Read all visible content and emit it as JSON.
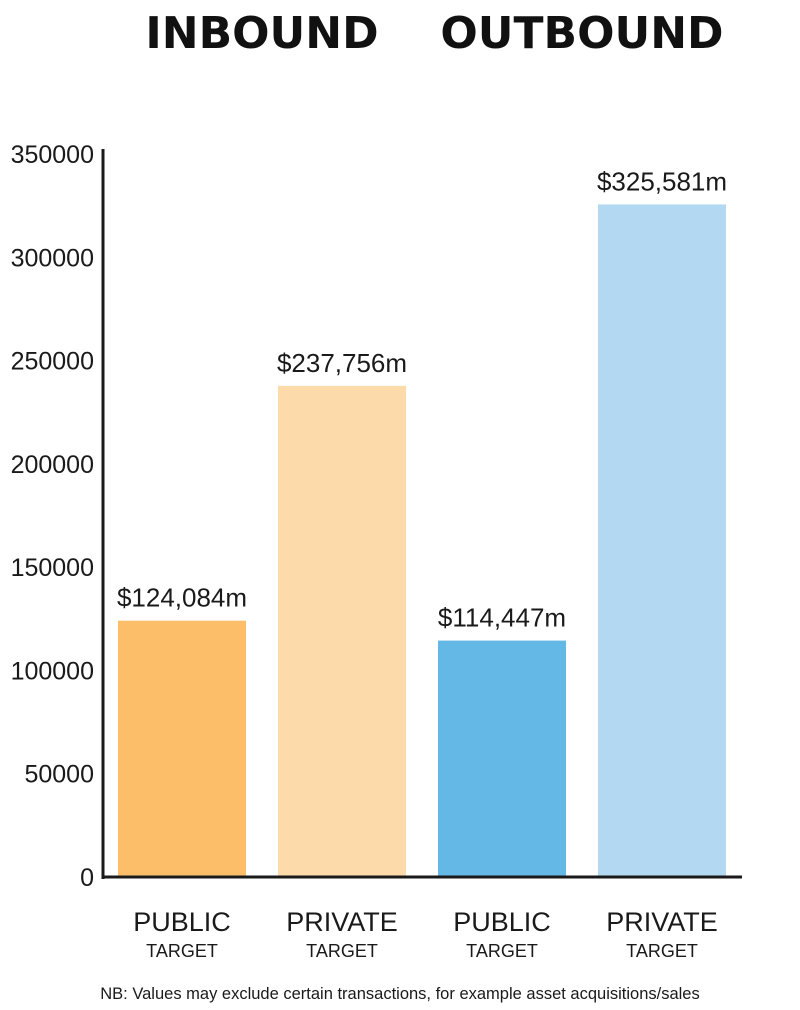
{
  "chart_data": {
    "type": "bar",
    "group_titles": [
      "INBOUND",
      "OUTBOUND"
    ],
    "categories": [
      {
        "main": "PUBLIC",
        "sub": "TARGET",
        "group": "INBOUND"
      },
      {
        "main": "PRIVATE",
        "sub": "TARGET",
        "group": "INBOUND"
      },
      {
        "main": "PUBLIC",
        "sub": "TARGET",
        "group": "OUTBOUND"
      },
      {
        "main": "PRIVATE",
        "sub": "TARGET",
        "group": "OUTBOUND"
      }
    ],
    "values": [
      124084,
      237756,
      114447,
      325581
    ],
    "data_labels": [
      "$124,084m",
      "$237,756m",
      "$114,447m",
      "$325,581m"
    ],
    "colors": [
      "#FDBE69",
      "#FDDAAA",
      "#63B8E5",
      "#B3D8F1"
    ],
    "ylim": [
      0,
      350000
    ],
    "yticks": [
      "0",
      "50000",
      "100000",
      "150000",
      "200000",
      "250000",
      "300000",
      "350000"
    ],
    "grid": false,
    "legend": "none"
  },
  "footnote": "NB: Values may exclude certain transactions, for example asset acquisitions/sales"
}
